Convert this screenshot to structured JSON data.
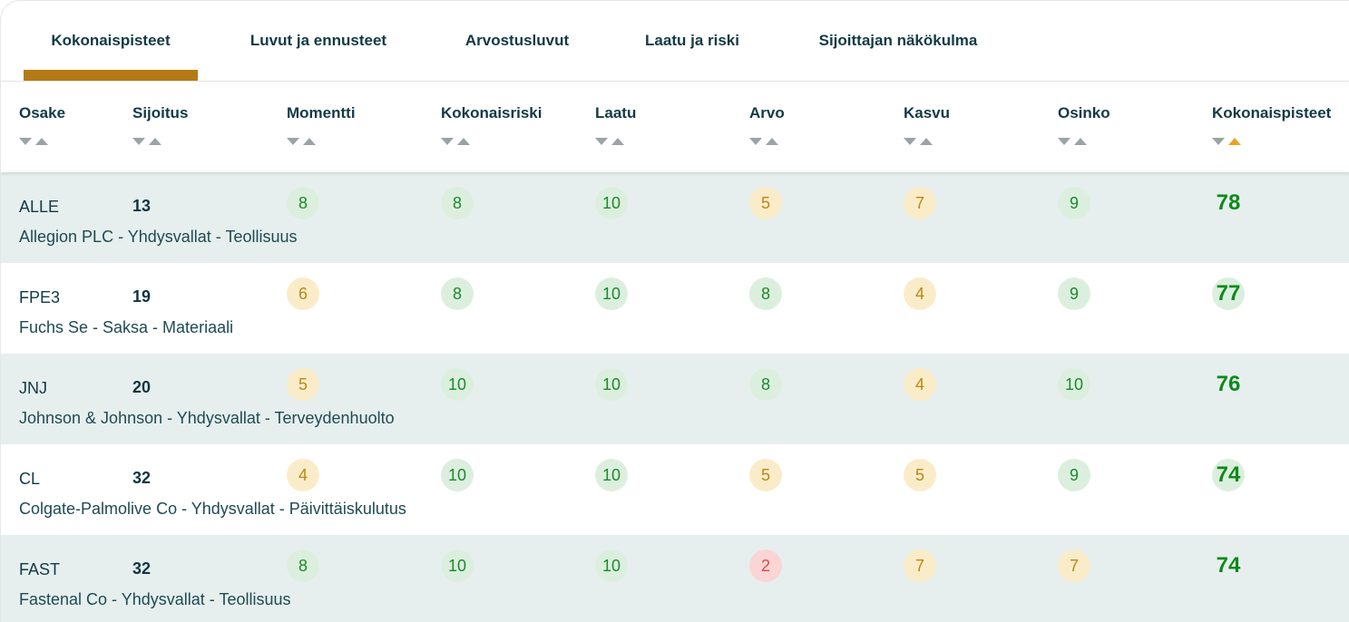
{
  "tabs": [
    {
      "label": "Kokonaispisteet",
      "active": true
    },
    {
      "label": "Luvut ja ennusteet",
      "active": false
    },
    {
      "label": "Arvostusluvut",
      "active": false
    },
    {
      "label": "Laatu ja riski",
      "active": false
    },
    {
      "label": "Sijoittajan näkökulma",
      "active": false
    }
  ],
  "columns": [
    "Osake",
    "Sijoitus",
    "Momentti",
    "Kokonaisriski",
    "Laatu",
    "Arvo",
    "Kasvu",
    "Osinko",
    "Kokonaispisteet"
  ],
  "active_sort": {
    "column": "Kokonaispisteet",
    "direction": "descending"
  },
  "colors": {
    "accent": "#b37a16",
    "sort_active": "#eca323",
    "good": "#1c8a28",
    "neutral": "#b98714",
    "bad": "#d94a4a",
    "row_shade": "#e6efee"
  },
  "rows": [
    {
      "ticker": "ALLE",
      "rank": "13",
      "desc": "Allegion PLC - Yhdysvallat - Teollisuus",
      "scores": [
        "8",
        "8",
        "10",
        "5",
        "7",
        "9"
      ],
      "levels": [
        "g",
        "g",
        "g",
        "y",
        "y",
        "g"
      ],
      "total": "78"
    },
    {
      "ticker": "FPE3",
      "rank": "19",
      "desc": "Fuchs Se - Saksa - Materiaali",
      "scores": [
        "6",
        "8",
        "10",
        "8",
        "4",
        "9"
      ],
      "levels": [
        "y",
        "g",
        "g",
        "g",
        "y",
        "g"
      ],
      "total": "77"
    },
    {
      "ticker": "JNJ",
      "rank": "20",
      "desc": "Johnson & Johnson - Yhdysvallat - Terveydenhuolto",
      "scores": [
        "5",
        "10",
        "10",
        "8",
        "4",
        "10"
      ],
      "levels": [
        "y",
        "g",
        "g",
        "g",
        "y",
        "g"
      ],
      "total": "76"
    },
    {
      "ticker": "CL",
      "rank": "32",
      "desc": "Colgate-Palmolive Co - Yhdysvallat - Päivittäiskulutus",
      "scores": [
        "4",
        "10",
        "10",
        "5",
        "5",
        "9"
      ],
      "levels": [
        "y",
        "g",
        "g",
        "y",
        "y",
        "g"
      ],
      "total": "74"
    },
    {
      "ticker": "FAST",
      "rank": "32",
      "desc": "Fastenal Co - Yhdysvallat - Teollisuus",
      "scores": [
        "8",
        "10",
        "10",
        "2",
        "7",
        "7"
      ],
      "levels": [
        "g",
        "g",
        "g",
        "r",
        "y",
        "y"
      ],
      "total": "74"
    }
  ]
}
